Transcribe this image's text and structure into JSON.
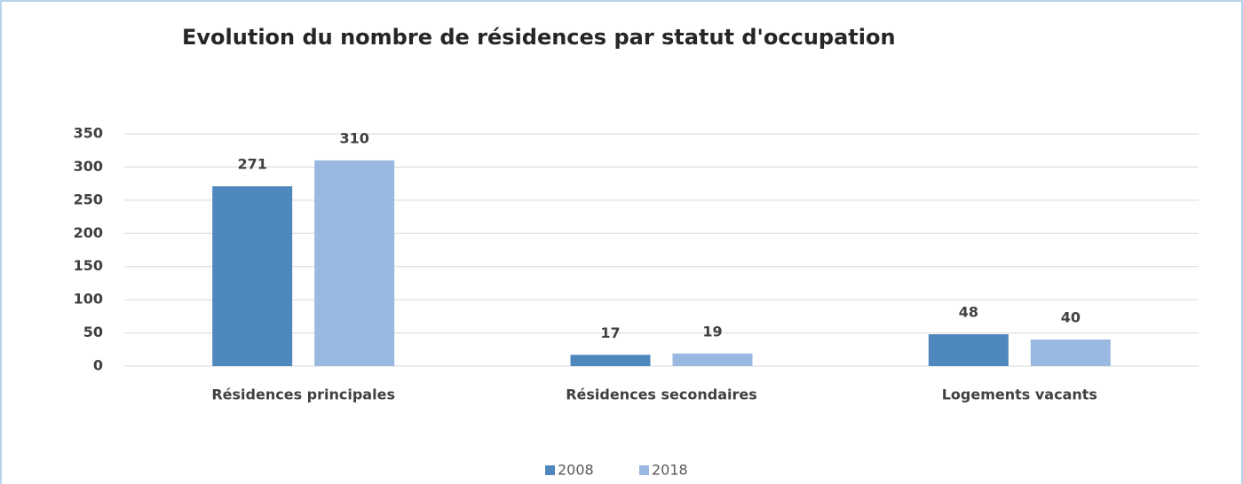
{
  "chart_data": {
    "type": "bar",
    "title": "Evolution du nombre de résidences par statut d'occupation",
    "categories": [
      "Résidences principales",
      "Résidences secondaires",
      "Logements vacants"
    ],
    "series": [
      {
        "name": "2008",
        "color": "#4f88bc",
        "values": [
          271,
          17,
          48
        ]
      },
      {
        "name": "2018",
        "color": "#99b9e0",
        "values": [
          310,
          19,
          40
        ]
      }
    ],
    "ylim": [
      0,
      350
    ],
    "yticks": [
      0,
      50,
      100,
      150,
      200,
      250,
      300,
      350
    ],
    "grid": true,
    "legend": "bottom"
  }
}
